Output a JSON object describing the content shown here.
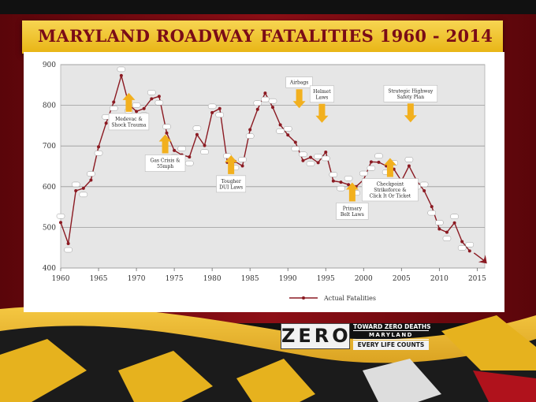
{
  "slide": {
    "title": "MARYLAND ROADWAY FATALITIES  1960 - 2014"
  },
  "logo": {
    "zero_text": "ZERO",
    "line1": "TOWARD ZERO DEATHS",
    "line2": "MARYLAND",
    "line3": "EVERY LIFE COUNTS"
  },
  "colors": {
    "series": "#8b1a22",
    "annotation": "#f2b01e",
    "title_bar": "#f2c53a",
    "title_text": "#7a0c17",
    "background_red": "#7c0a10"
  },
  "chart_data": {
    "type": "line",
    "xlim": [
      1960,
      2016
    ],
    "ylim": [
      400,
      900
    ],
    "xticks": [
      1960,
      1965,
      1970,
      1975,
      1980,
      1985,
      1990,
      1995,
      2000,
      2005,
      2010,
      2015
    ],
    "yticks": [
      400,
      500,
      600,
      700,
      800,
      900
    ],
    "grid": true,
    "legend_position": "bottom",
    "series": [
      {
        "name": "Actual Fatalities",
        "x": [
          1960,
          1961,
          1962,
          1963,
          1964,
          1965,
          1966,
          1967,
          1968,
          1969,
          1970,
          1971,
          1972,
          1973,
          1974,
          1975,
          1976,
          1977,
          1978,
          1979,
          1980,
          1981,
          1982,
          1983,
          1984,
          1985,
          1986,
          1987,
          1988,
          1989,
          1990,
          1991,
          1992,
          1993,
          1994,
          1995,
          1996,
          1997,
          1998,
          1999,
          2000,
          2001,
          2002,
          2003,
          2004,
          2005,
          2006,
          2007,
          2008,
          2009,
          2010,
          2011,
          2012,
          2013,
          2014
        ],
        "values": [
          512,
          460,
          590,
          596,
          616,
          698,
          756,
          808,
          873,
          802,
          785,
          792,
          816,
          822,
          732,
          689,
          678,
          673,
          728,
          701,
          782,
          792,
          660,
          662,
          651,
          740,
          790,
          830,
          795,
          752,
          727,
          709,
          664,
          672,
          659,
          685,
          614,
          611,
          605,
          600,
          617,
          661,
          660,
          651,
          643,
          614,
          651,
          615,
          590,
          551,
          496,
          488,
          511,
          465,
          442
        ]
      }
    ],
    "annotations": [
      {
        "lines": [
          "Medevac &",
          "Shock Trauma"
        ],
        "year": 1969.0,
        "value": 780,
        "direction": "up"
      },
      {
        "lines": [
          "Gas Crisis &",
          "55mph"
        ],
        "year": 1973.8,
        "value": 678,
        "direction": "up"
      },
      {
        "lines": [
          "Tougher",
          "DUI Laws"
        ],
        "year": 1982.5,
        "value": 627,
        "direction": "up"
      },
      {
        "lines": [
          "Airbags"
        ],
        "year": 1991.5,
        "value": 793,
        "direction": "down"
      },
      {
        "lines": [
          "Helmet",
          "Laws"
        ],
        "year": 1994.5,
        "value": 757,
        "direction": "down"
      },
      {
        "lines": [
          "Primary",
          "Belt Laws"
        ],
        "year": 1998.5,
        "value": 560,
        "direction": "up"
      },
      {
        "lines": [
          "Checkpoint",
          "Strikeforce &",
          "Click It Or Ticket"
        ],
        "year": 2003.5,
        "value": 620,
        "direction": "up"
      },
      {
        "lines": [
          "Strategic Highway",
          "Safety Plan"
        ],
        "year": 2006.2,
        "value": 758,
        "direction": "down"
      }
    ]
  }
}
